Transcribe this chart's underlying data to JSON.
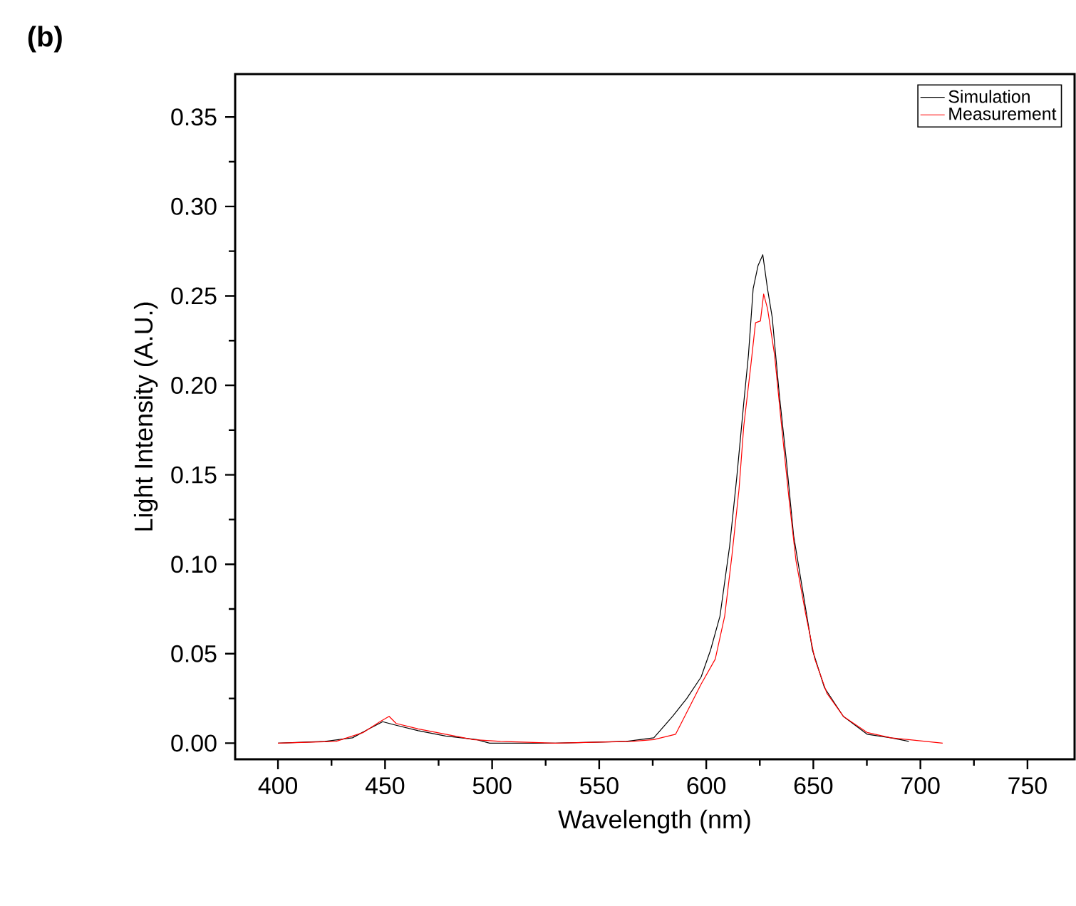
{
  "chart_data": {
    "type": "line",
    "title": "(b)",
    "xlabel": "Wavelength (nm)",
    "ylabel": "Light Intensity (A.U.)",
    "xlim": [
      380,
      772
    ],
    "ylim": [
      -0.009,
      0.374
    ],
    "xticks": [
      400,
      {
        "value": 425,
        "label": null
      },
      450,
      {
        "value": 475,
        "label": null
      },
      500,
      {
        "value": 525,
        "label": null
      },
      550,
      {
        "value": 575,
        "label": null
      },
      600,
      {
        "value": 625,
        "label": null
      },
      650,
      {
        "value": 675,
        "label": null
      },
      700,
      {
        "value": 725,
        "label": null
      },
      750
    ],
    "yticks": [
      {
        "value": 0,
        "label": "0.00"
      },
      {
        "value": 0.025,
        "label": null
      },
      {
        "value": 0.05,
        "label": "0.05"
      },
      {
        "value": 0.075,
        "label": null
      },
      {
        "value": 0.1,
        "label": "0.10"
      },
      {
        "value": 0.125,
        "label": null
      },
      {
        "value": 0.15,
        "label": "0.15"
      },
      {
        "value": 0.175,
        "label": null
      },
      {
        "value": 0.2,
        "label": "0.20"
      },
      {
        "value": 0.225,
        "label": null
      },
      {
        "value": 0.25,
        "label": "0.25"
      },
      {
        "value": 0.275,
        "label": null
      },
      {
        "value": 0.3,
        "label": "0.30"
      },
      {
        "value": 0.325,
        "label": null
      },
      {
        "value": 0.35,
        "label": "0.35"
      }
    ],
    "legend": "top right",
    "series": [
      {
        "name": "Simulation",
        "color": "#000000",
        "x": [
          400,
          422,
          434.8,
          442.5,
          448.9,
          455.2,
          465.5,
          478.3,
          492.8,
          498.8,
          529.5,
          562.7,
          575.5,
          584.3,
          590.9,
          597.6,
          602.0,
          606.4,
          610.9,
          614.2,
          617.5,
          619.7,
          621.9,
          624.2,
          626.4,
          628.6,
          630.8,
          634.1,
          637.4,
          640.8,
          645.2,
          649.6,
          655.2,
          664.0,
          675.1,
          686.2,
          694.6
        ],
        "values": [
          0.0,
          0.001,
          0.003,
          0.008,
          0.012,
          0.01,
          0.007,
          0.004,
          0.002,
          0.0,
          0.0,
          0.001,
          0.003,
          0.015,
          0.025,
          0.037,
          0.052,
          0.071,
          0.11,
          0.148,
          0.19,
          0.217,
          0.254,
          0.267,
          0.273,
          0.254,
          0.238,
          0.195,
          0.158,
          0.116,
          0.084,
          0.052,
          0.031,
          0.015,
          0.005,
          0.003,
          0.001
        ]
      },
      {
        "name": "Measurement",
        "color": "#ff0000",
        "x": [
          400,
          427.1,
          439.9,
          447.6,
          451.9,
          455.2,
          465.5,
          478.3,
          491.1,
          503.9,
          529.5,
          565.3,
          575.5,
          585.7,
          597.6,
          604.2,
          608.6,
          612.0,
          615.3,
          617.5,
          620.8,
          623.0,
          625.3,
          626.8,
          628.6,
          631.9,
          635.2,
          638.6,
          641.9,
          646.3,
          650.7,
          656.3,
          664.0,
          675.1,
          686.2,
          710.4
        ],
        "values": [
          0.0,
          0.001,
          0.006,
          0.012,
          0.015,
          0.011,
          0.008,
          0.005,
          0.002,
          0.001,
          0.0,
          0.001,
          0.002,
          0.005,
          0.033,
          0.047,
          0.071,
          0.105,
          0.142,
          0.177,
          0.211,
          0.235,
          0.236,
          0.251,
          0.243,
          0.217,
          0.177,
          0.137,
          0.102,
          0.073,
          0.047,
          0.028,
          0.015,
          0.006,
          0.003,
          0.0
        ]
      }
    ]
  }
}
